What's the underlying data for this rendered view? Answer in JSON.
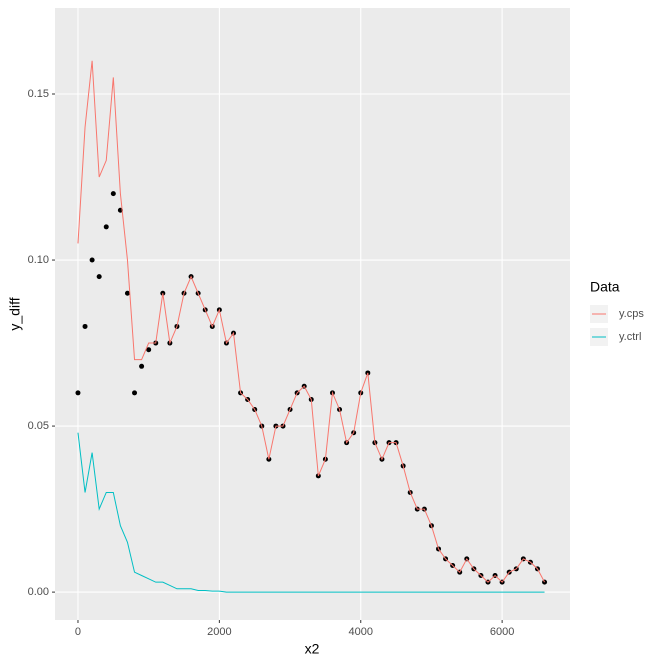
{
  "chart_data": {
    "type": "line",
    "x_label": "x2",
    "y_label": "y_diff",
    "legend_title": "Data",
    "legend_position": "right",
    "xlim": [
      -325,
      6960
    ],
    "ylim": [
      -0.0084,
      0.1759
    ],
    "xticks": [
      0,
      2000,
      4000,
      6000
    ],
    "yticks": [
      {
        "value": 0,
        "label": "0.00"
      },
      {
        "value": 0.05,
        "label": "0.05"
      },
      {
        "value": 0.1,
        "label": "0.10"
      },
      {
        "value": 0.15,
        "label": "0.15"
      }
    ],
    "grid": true,
    "x": [
      0,
      100,
      200,
      300,
      400,
      500,
      600,
      700,
      800,
      900,
      1000,
      1100,
      1200,
      1300,
      1400,
      1500,
      1600,
      1700,
      1800,
      1900,
      2000,
      2100,
      2200,
      2300,
      2400,
      2500,
      2600,
      2700,
      2800,
      2900,
      3000,
      3100,
      3200,
      3300,
      3400,
      3500,
      3600,
      3700,
      3800,
      3900,
      4000,
      4100,
      4200,
      4300,
      4400,
      4500,
      4600,
      4700,
      4800,
      4900,
      5000,
      5100,
      5200,
      5300,
      5400,
      5500,
      5600,
      5700,
      5800,
      5900,
      6000,
      6100,
      6200,
      6300,
      6400,
      6500,
      6600
    ],
    "series": [
      {
        "color": "#000000",
        "style": "points",
        "values": [
          0.06,
          0.08,
          0.1,
          0.095,
          0.11,
          0.12,
          0.115,
          0.09,
          0.06,
          0.068,
          0.073,
          0.075,
          0.09,
          0.075,
          0.08,
          0.09,
          0.095,
          0.09,
          0.085,
          0.08,
          0.085,
          0.075,
          0.078,
          0.06,
          0.058,
          0.055,
          0.05,
          0.04,
          0.05,
          0.05,
          0.055,
          0.06,
          0.062,
          0.058,
          0.035,
          0.04,
          0.06,
          0.055,
          0.045,
          0.048,
          0.06,
          0.066,
          0.045,
          0.04,
          0.045,
          0.045,
          0.038,
          0.03,
          0.025,
          0.025,
          0.02,
          0.013,
          0.01,
          0.008,
          0.006,
          0.01,
          0.007,
          0.005,
          0.003,
          0.005,
          0.003,
          0.006,
          0.007,
          0.01,
          0.009,
          0.007,
          0.003
        ]
      },
      {
        "name": "y.cps",
        "color": "#f8766d",
        "style": "line",
        "values": [
          0.105,
          0.14,
          0.16,
          0.125,
          0.13,
          0.155,
          0.12,
          0.1,
          0.07,
          0.07,
          0.075,
          0.075,
          0.09,
          0.075,
          0.08,
          0.09,
          0.095,
          0.09,
          0.085,
          0.08,
          0.085,
          0.075,
          0.078,
          0.06,
          0.058,
          0.055,
          0.05,
          0.04,
          0.05,
          0.05,
          0.055,
          0.06,
          0.062,
          0.058,
          0.035,
          0.04,
          0.06,
          0.055,
          0.045,
          0.048,
          0.06,
          0.066,
          0.045,
          0.04,
          0.045,
          0.045,
          0.038,
          0.03,
          0.025,
          0.025,
          0.02,
          0.013,
          0.01,
          0.008,
          0.006,
          0.01,
          0.007,
          0.005,
          0.003,
          0.005,
          0.003,
          0.006,
          0.007,
          0.01,
          0.009,
          0.007,
          0.003
        ]
      },
      {
        "name": "y.ctrl",
        "color": "#00bfc4",
        "style": "line",
        "values": [
          0.048,
          0.03,
          0.042,
          0.025,
          0.03,
          0.03,
          0.02,
          0.015,
          0.006,
          0.005,
          0.004,
          0.003,
          0.003,
          0.002,
          0.001,
          0.001,
          0.001,
          0.0005,
          0.0005,
          0.0003,
          0.0003,
          0,
          0,
          0,
          0,
          0,
          0,
          0,
          0,
          0,
          0,
          0,
          0,
          0,
          0,
          0,
          0,
          0,
          0,
          0,
          0,
          0,
          0,
          0,
          0,
          0,
          0,
          0,
          0,
          0,
          0,
          0,
          0,
          0,
          0,
          0,
          0,
          0,
          0,
          0,
          0,
          0,
          0,
          0,
          0,
          0,
          0
        ]
      }
    ]
  }
}
